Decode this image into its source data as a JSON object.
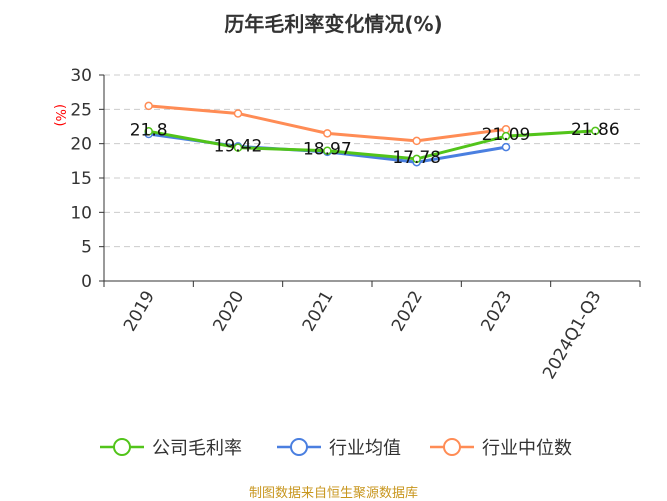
{
  "title": "历年毛利率变化情况(%)",
  "source": "制图数据来自恒生聚源数据库",
  "chart_data": {
    "type": "line",
    "title": "历年毛利率变化情况(%)",
    "ylabel": "(%)",
    "ylim": [
      0,
      30
    ],
    "yticks": [
      0,
      5,
      10,
      15,
      20,
      25,
      30
    ],
    "grid": true,
    "legend_position": "bottom",
    "categories": [
      "2019",
      "2020",
      "2021",
      "2022",
      "2023",
      "2024Q1-Q3"
    ],
    "series": [
      {
        "name": "公司毛利率",
        "color": "#52c41a",
        "values": [
          21.8,
          19.42,
          18.97,
          17.78,
          21.09,
          21.86
        ],
        "labels": [
          "21.8",
          "19.42",
          "18.97",
          "17.78",
          "21.09",
          "21.86"
        ]
      },
      {
        "name": "行业均值",
        "color": "#4a7fe0",
        "values": [
          21.4,
          19.6,
          18.8,
          17.3,
          19.5,
          null
        ]
      },
      {
        "name": "行业中位数",
        "color": "#ff8c55",
        "values": [
          25.5,
          24.4,
          21.5,
          20.4,
          22.1,
          null
        ]
      }
    ]
  }
}
